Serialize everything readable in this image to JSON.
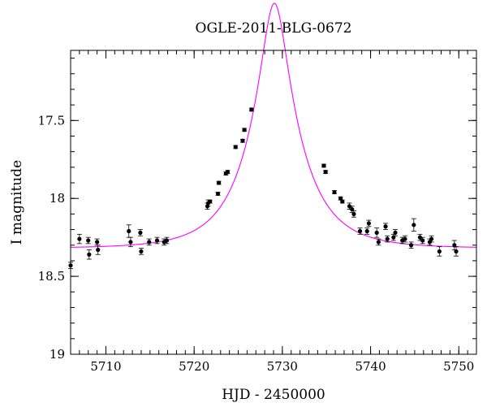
{
  "chart_data": {
    "type": "scatter",
    "title": "OGLE-2011-BLG-0672",
    "xlabel": "HJD - 2450000",
    "ylabel": "I magnitude",
    "xlim": [
      5706,
      5752
    ],
    "ylim": [
      19.0,
      17.05
    ],
    "y_inverted": true,
    "x_ticks": [
      5710,
      5720,
      5730,
      5740,
      5750
    ],
    "x_tick_labels": [
      "5710",
      "5720",
      "5730",
      "5740",
      "5750"
    ],
    "y_ticks": [
      17.5,
      18.0,
      18.5,
      19.0
    ],
    "y_tick_labels": [
      "17.5",
      "18",
      "18.5",
      "19"
    ],
    "x_minor_step": 1,
    "y_minor_step": 0.1,
    "grid": false,
    "model_color": "#ff00ff",
    "point_color": "#000000",
    "model": {
      "t0": 5729.1,
      "u0": 0.24,
      "tE": 5.7,
      "I_base": 18.32
    },
    "series": [
      {
        "x": [
          5706.0,
          5707.0,
          5708.0,
          5708.1,
          5709.0,
          5709.1,
          5712.6,
          5712.8,
          5713.9,
          5714.0,
          5714.9,
          5715.8,
          5716.6,
          5716.9,
          5721.5,
          5721.6,
          5721.8,
          5722.7,
          5722.8,
          5723.6,
          5723.8,
          5724.7,
          5725.5,
          5725.7,
          5726.5,
          5734.7,
          5734.9,
          5735.9,
          5736.6,
          5736.8,
          5737.6,
          5737.9,
          5738.1,
          5738.8,
          5739.6,
          5739.8,
          5740.7,
          5740.9,
          5741.7,
          5741.9,
          5742.6,
          5742.8,
          5743.6,
          5743.9,
          5744.6,
          5744.9,
          5745.6,
          5745.9,
          5746.7,
          5746.9,
          5747.8,
          5749.5,
          5749.7
        ],
        "y": [
          18.43,
          18.26,
          18.27,
          18.36,
          18.28,
          18.33,
          18.21,
          18.28,
          18.22,
          18.34,
          18.28,
          18.27,
          18.28,
          18.27,
          18.05,
          18.03,
          18.02,
          17.97,
          17.9,
          17.84,
          17.83,
          17.67,
          17.63,
          17.56,
          17.43,
          17.79,
          17.83,
          17.96,
          18.0,
          18.02,
          18.05,
          18.07,
          18.1,
          18.21,
          18.21,
          18.16,
          18.22,
          18.28,
          18.18,
          18.26,
          18.25,
          18.22,
          18.27,
          18.26,
          18.3,
          18.17,
          18.25,
          18.27,
          18.28,
          18.26,
          18.34,
          18.3,
          18.34
        ],
        "err": [
          0.02,
          0.03,
          0.02,
          0.03,
          0.02,
          0.03,
          0.04,
          0.03,
          0.02,
          0.02,
          0.02,
          0.02,
          0.02,
          0.02,
          0.02,
          0.02,
          0.01,
          0.01,
          0.01,
          0.01,
          0.01,
          0.01,
          0.01,
          0.01,
          0.01,
          0.01,
          0.01,
          0.01,
          0.01,
          0.01,
          0.02,
          0.02,
          0.02,
          0.02,
          0.02,
          0.02,
          0.03,
          0.02,
          0.02,
          0.02,
          0.02,
          0.02,
          0.02,
          0.02,
          0.02,
          0.04,
          0.02,
          0.02,
          0.02,
          0.02,
          0.03,
          0.03,
          0.03
        ]
      }
    ]
  }
}
